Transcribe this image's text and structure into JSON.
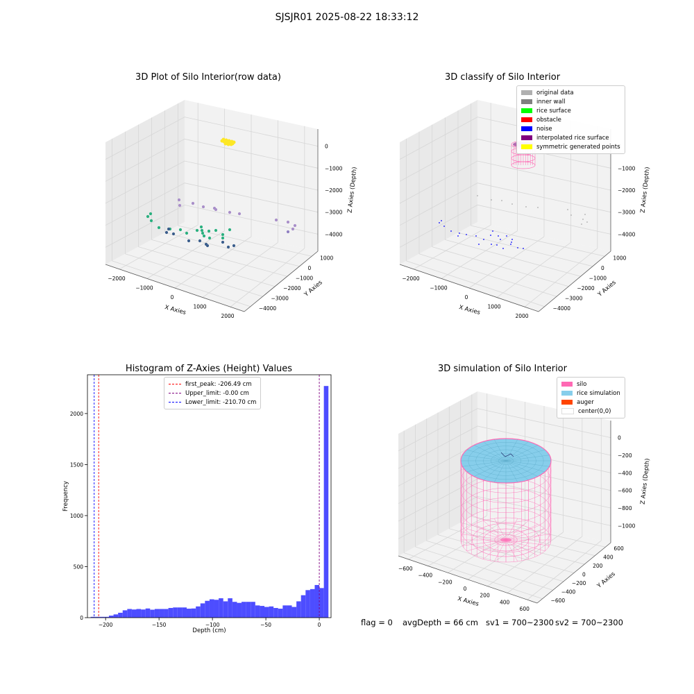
{
  "suptitle": "SJSJR01 2025-08-22 18:33:12",
  "colors": {
    "pane": "#f2f2f2",
    "pane_side": "#e9e9e9",
    "grid": "#d6d6d6",
    "hist_bar": "#4d4dff",
    "silo": "#ff69b4",
    "rice": "#87ceeb",
    "auger": "#ff4500"
  },
  "chart_data": [
    {
      "id": "raw3d",
      "type": "scatter",
      "title": "3D Plot of Silo Interior(row data)",
      "xlabel": "X Axies",
      "ylabel": "Y Axies",
      "zlabel": "Z Axies (Depth)",
      "x_ticks": [
        "−2000",
        "−1000",
        "0",
        "1000",
        "2000"
      ],
      "y_ticks": [
        "1000",
        "0",
        "−1000",
        "−2000",
        "−3000",
        "−4000"
      ],
      "z_ticks": [
        "0",
        "−1000",
        "−2000",
        "−3000",
        "−4000"
      ],
      "grid": true
    },
    {
      "id": "classify3d",
      "type": "scatter",
      "title": "3D classify of Silo Interior",
      "xlabel": "X Axies",
      "ylabel": "Y Axies",
      "zlabel": "Z Axies (Depth)",
      "x_ticks": [
        "−2000",
        "−1000",
        "0",
        "1000",
        "2000"
      ],
      "y_ticks": [
        "1000",
        "0",
        "−1000",
        "−2000",
        "−3000",
        "−4000"
      ],
      "z_ticks": [
        "0",
        "−1000",
        "−2000",
        "−3000",
        "−4000"
      ],
      "grid": true,
      "legend_position": "top-right",
      "legend": [
        {
          "label": "original data",
          "color": "#b0b0b0"
        },
        {
          "label": "inner wall",
          "color": "#808080"
        },
        {
          "label": "rice surface",
          "color": "#00ff00"
        },
        {
          "label": "obstacle",
          "color": "#ff0000"
        },
        {
          "label": "noise",
          "color": "#0000ff"
        },
        {
          "label": "interpolated rice surface",
          "color": "#800080"
        },
        {
          "label": "symmetric generated points",
          "color": "#ffff00"
        }
      ]
    },
    {
      "id": "hist",
      "type": "bar",
      "title": "Histogram of Z-Axies (Height) Values",
      "xlabel": "Depth (cm)",
      "ylabel": "Frequency",
      "xlim": [
        -217,
        11
      ],
      "ylim": [
        0,
        2380
      ],
      "x_ticks": [
        -200,
        -150,
        -100,
        -50,
        0
      ],
      "x_tick_labels": [
        "−200",
        "−150",
        "−100",
        "−50",
        "0"
      ],
      "y_ticks": [
        0,
        500,
        1000,
        1500,
        2000
      ],
      "bin_start": -214,
      "bin_width": 4.28,
      "values": [
        8,
        8,
        8,
        8,
        20,
        32,
        48,
        72,
        85,
        80,
        85,
        80,
        90,
        78,
        85,
        85,
        85,
        95,
        100,
        100,
        100,
        88,
        90,
        110,
        140,
        165,
        180,
        175,
        190,
        160,
        190,
        155,
        145,
        155,
        155,
        155,
        120,
        115,
        105,
        110,
        95,
        88,
        120,
        120,
        105,
        160,
        220,
        270,
        280,
        320,
        290,
        2270
      ],
      "grid": false,
      "legend_position": "top-center",
      "vlines": [
        {
          "label": "first_peak: -206.49 cm",
          "x": -206.49,
          "color": "#ff0000"
        },
        {
          "label": "Upper_limit: -0.00 cm",
          "x": 0,
          "color": "#800080"
        },
        {
          "label": "Lower_limit: -210.70 cm",
          "x": -210.7,
          "color": "#0000ff"
        }
      ]
    },
    {
      "id": "sim3d",
      "type": "scatter",
      "title": "3D simulation of Silo Interior",
      "xlabel": "X Axies",
      "ylabel": "Y Axies",
      "zlabel": "Z Axies (Depth)",
      "x_ticks": [
        "−600",
        "−400",
        "−200",
        "0",
        "200",
        "400",
        "600"
      ],
      "y_ticks": [
        "600",
        "400",
        "200",
        "0",
        "−200",
        "−400",
        "−600"
      ],
      "z_ticks": [
        "0",
        "−200",
        "−400",
        "−600",
        "−800",
        "−1000"
      ],
      "grid": true,
      "legend_position": "top-right",
      "legend": [
        {
          "label": "silo",
          "color": "#ff69b4"
        },
        {
          "label": "rice simulation",
          "color": "#87ceeb"
        },
        {
          "label": "auger",
          "color": "#ff4500"
        },
        {
          "label": "center(0,0)",
          "color": "#ffffff"
        }
      ]
    }
  ],
  "footer": {
    "flag": "flag = 0",
    "avg_depth": "avgDepth = 66 cm",
    "sv1": "sv1 = 700~2300",
    "sv2": "sv2 = 700~2300"
  }
}
